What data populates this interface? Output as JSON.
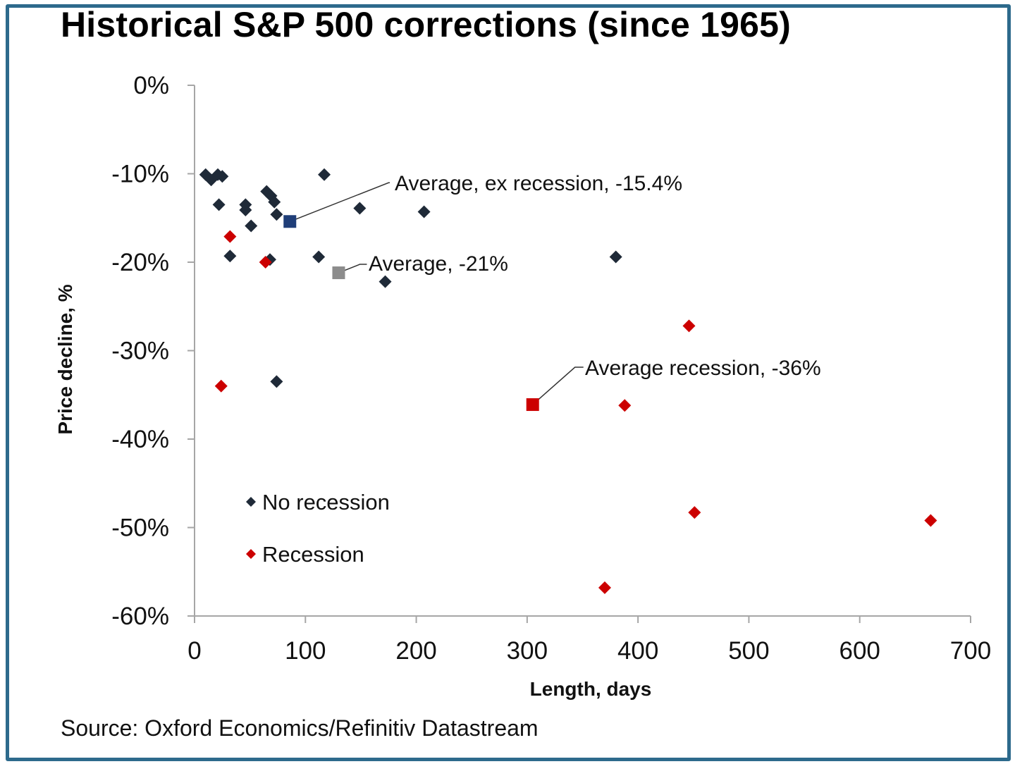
{
  "chart_data": {
    "type": "scatter",
    "title": "Historical S&P 500 corrections (since 1965)",
    "xlabel": "Length, days",
    "ylabel": "Price decline, %",
    "xlim": [
      0,
      700
    ],
    "ylim": [
      -60,
      0
    ],
    "x_ticks": [
      0,
      100,
      200,
      300,
      400,
      500,
      600,
      700
    ],
    "x_tick_labels": [
      "0",
      "100",
      "200",
      "300",
      "400",
      "500",
      "600",
      "700"
    ],
    "y_ticks": [
      0,
      -10,
      -20,
      -30,
      -40,
      -50,
      -60
    ],
    "y_tick_labels": [
      "0%",
      "-10%",
      "-20%",
      "-30%",
      "-40%",
      "-50%",
      "-60%"
    ],
    "grid": false,
    "legend_position": "lower-left",
    "series": [
      {
        "name": "No recession",
        "color": "#1f2a38",
        "marker": "diamond",
        "points": [
          [
            10,
            -10.1
          ],
          [
            15,
            -10.7
          ],
          [
            21,
            -10.1
          ],
          [
            25,
            -10.3
          ],
          [
            22,
            -13.5
          ],
          [
            46,
            -13.5
          ],
          [
            46,
            -14.1
          ],
          [
            51,
            -15.9
          ],
          [
            65,
            -12.0
          ],
          [
            69,
            -12.5
          ],
          [
            72,
            -13.2
          ],
          [
            74,
            -14.6
          ],
          [
            32,
            -19.3
          ],
          [
            68,
            -19.7
          ],
          [
            117,
            -10.1
          ],
          [
            149,
            -13.9
          ],
          [
            207,
            -14.3
          ],
          [
            112,
            -19.4
          ],
          [
            172,
            -22.2
          ],
          [
            380,
            -19.4
          ],
          [
            74,
            -33.5
          ]
        ]
      },
      {
        "name": "Recession",
        "color": "#cc0000",
        "marker": "diamond",
        "points": [
          [
            32,
            -17.1
          ],
          [
            64,
            -20.0
          ],
          [
            24,
            -34.0
          ],
          [
            446,
            -27.2
          ],
          [
            388,
            -36.2
          ],
          [
            451,
            -48.3
          ],
          [
            664,
            -49.2
          ],
          [
            370,
            -56.8
          ]
        ]
      }
    ],
    "annotations": [
      {
        "label": "Average, ex recession, -15.4%",
        "x": 86,
        "y": -15.4,
        "color": "#1f3e78",
        "marker": "square"
      },
      {
        "label": "Average, -21%",
        "x": 130,
        "y": -21.2,
        "color": "#8c8c8c",
        "marker": "square"
      },
      {
        "label": "Average recession, -36%",
        "x": 305,
        "y": -36.1,
        "color": "#cc0000",
        "marker": "square"
      }
    ],
    "source": "Source: Oxford Economics/Refinitiv Datastream"
  },
  "colors": {
    "frame_border": "#2d6a8c",
    "axis": "#a6a6a6"
  }
}
